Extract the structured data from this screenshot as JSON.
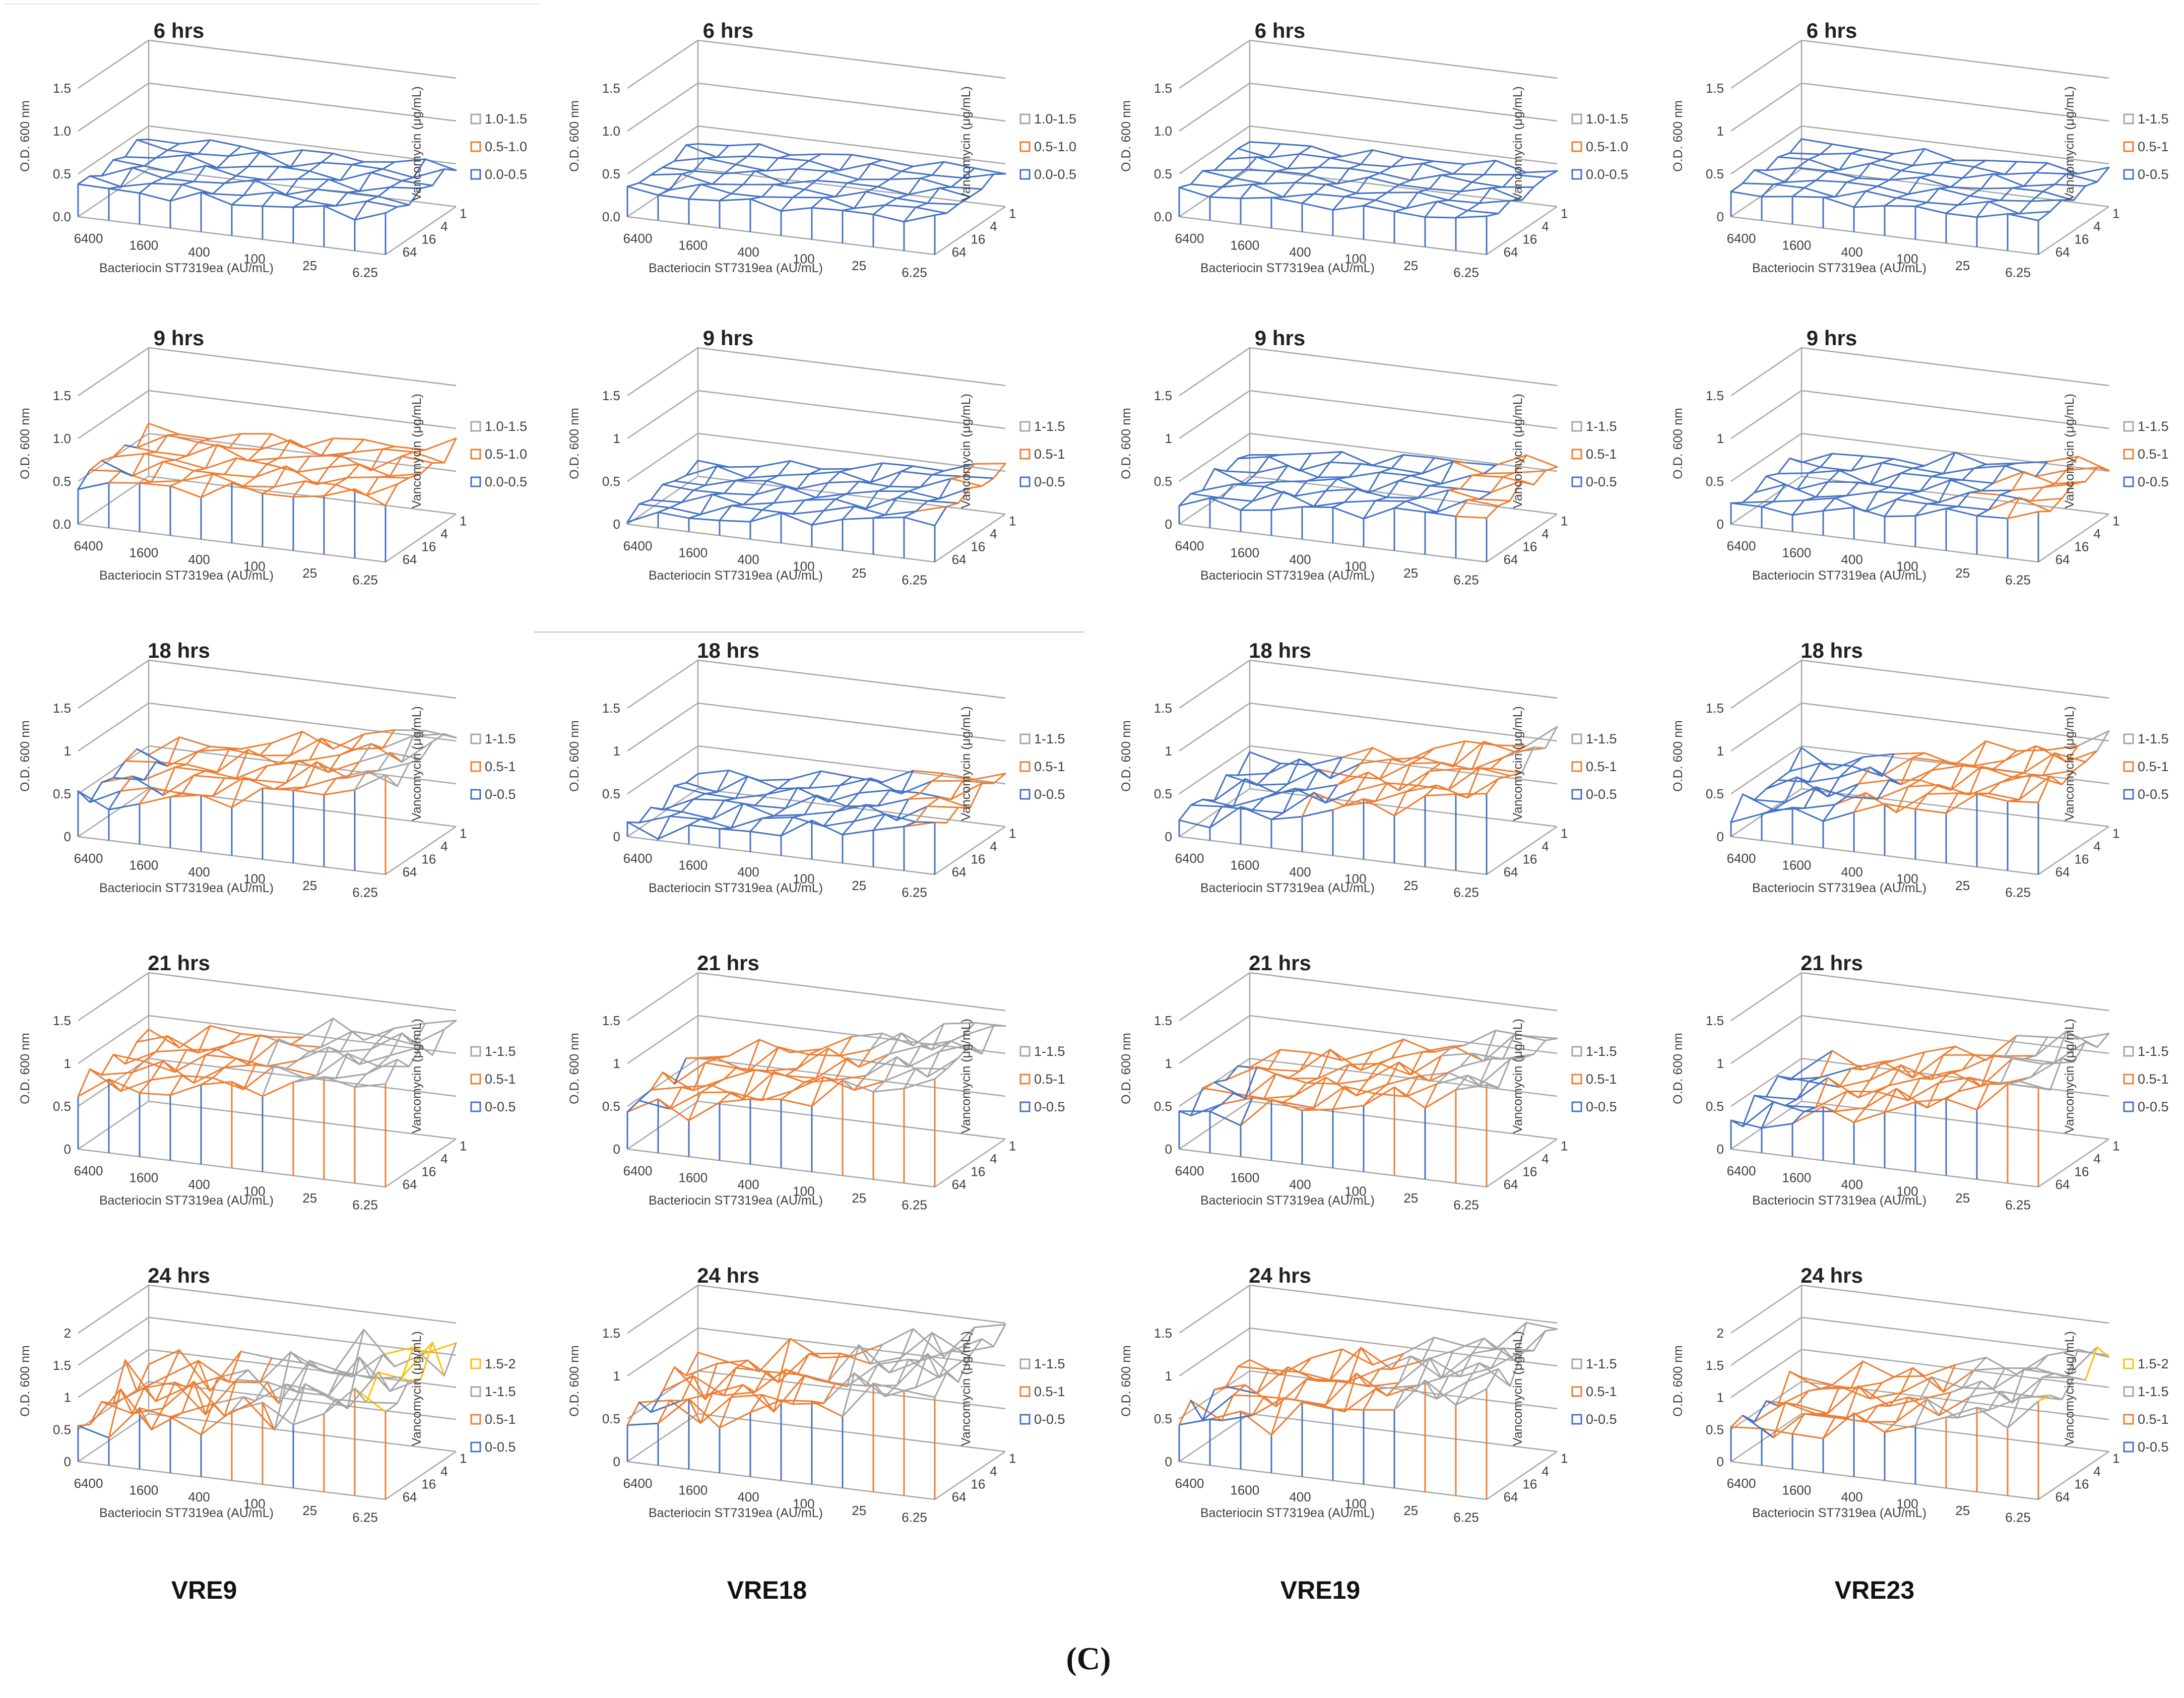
{
  "figure": {
    "panel_label": "(C)",
    "columns": [
      "VRE9",
      "VRE18",
      "VRE19",
      "VRE23"
    ],
    "rows": [
      "6 hrs",
      "9 hrs",
      "18 hrs",
      "21 hrs",
      "24 hrs"
    ],
    "x_label": "Bacteriocin ST7319ea  (AU/mL)",
    "y_label": "O.D. 600 nm",
    "z_label": "Vancomycin (μg/mL)",
    "x_ticks": [
      "6400",
      "1600",
      "400",
      "100",
      "25",
      "6.25"
    ],
    "z_ticks": [
      "1",
      "4",
      "16",
      "64"
    ],
    "colors": {
      "0-0.5": "#4472c4",
      "0.5-1": "#ed7d31",
      "1-1.5": "#a5a5a5",
      "1.5-2": "#ffc000",
      "axis": "#a6a6a6"
    }
  },
  "chart_data": [
    {
      "type": "surface",
      "strain": "VRE9",
      "title": "6 hrs",
      "yticks": [
        "0.0",
        "0.5",
        "1.0",
        "1.5"
      ],
      "ylim": [
        0,
        1.5
      ],
      "legend": [
        "1.0-1.5",
        "0.5-1.0",
        "0.0-0.5"
      ],
      "base": 0.35,
      "rise": 0.1,
      "noise": 0.05
    },
    {
      "type": "surface",
      "strain": "VRE18",
      "title": "6 hrs",
      "yticks": [
        "0.0",
        "0.5",
        "1.0",
        "1.5"
      ],
      "ylim": [
        0,
        1.5
      ],
      "legend": [
        "1.0-1.5",
        "0.5-1.0",
        "0.0-0.5"
      ],
      "base": 0.3,
      "rise": 0.1,
      "noise": 0.04
    },
    {
      "type": "surface",
      "strain": "VRE19",
      "title": "6 hrs",
      "yticks": [
        "0.0",
        "0.5",
        "1.0",
        "1.5"
      ],
      "ylim": [
        0,
        1.5
      ],
      "legend": [
        "1.0-1.5",
        "0.5-1.0",
        "0.0-0.5"
      ],
      "base": 0.3,
      "rise": 0.1,
      "noise": 0.04
    },
    {
      "type": "surface",
      "strain": "VRE23",
      "title": "6 hrs",
      "yticks": [
        "0",
        "0.5",
        "1",
        "1.5"
      ],
      "ylim": [
        0,
        1.5
      ],
      "legend": [
        "1-1.5",
        "0.5-1",
        "0-0.5"
      ],
      "base": 0.3,
      "rise": 0.1,
      "noise": 0.04
    },
    {
      "type": "surface",
      "strain": "VRE9",
      "title": "9 hrs",
      "yticks": [
        "0.0",
        "0.5",
        "1.0",
        "1.5"
      ],
      "ylim": [
        0,
        1.5
      ],
      "legend": [
        "1.0-1.5",
        "0.5-1.0",
        "0.0-0.5"
      ],
      "base": 0.5,
      "rise": 0.25,
      "noise": 0.07
    },
    {
      "type": "surface",
      "strain": "VRE18",
      "title": "9 hrs",
      "yticks": [
        "0",
        "0.5",
        "1",
        "1.5"
      ],
      "ylim": [
        0,
        1.5
      ],
      "legend": [
        "1-1.5",
        "0.5-1",
        "0-0.5"
      ],
      "base": 0.1,
      "rise": 0.4,
      "noise": 0.05
    },
    {
      "type": "surface",
      "strain": "VRE19",
      "title": "9 hrs",
      "yticks": [
        "0",
        "0.5",
        "1",
        "1.5"
      ],
      "ylim": [
        0,
        1.5
      ],
      "legend": [
        "1-1.5",
        "0.5-1",
        "0-0.5"
      ],
      "base": 0.25,
      "rise": 0.3,
      "noise": 0.06
    },
    {
      "type": "surface",
      "strain": "VRE23",
      "title": "9 hrs",
      "yticks": [
        "0",
        "0.5",
        "1",
        "1.5"
      ],
      "ylim": [
        0,
        1.5
      ],
      "legend": [
        "1-1.5",
        "0.5-1",
        "0-0.5"
      ],
      "base": 0.2,
      "rise": 0.35,
      "noise": 0.06
    },
    {
      "type": "surface",
      "strain": "VRE9",
      "title": "18 hrs",
      "yticks": [
        "0",
        "0.5",
        "1",
        "1.5"
      ],
      "ylim": [
        0,
        1.5
      ],
      "legend": [
        "1-1.5",
        "0.5-1",
        "0-0.5"
      ],
      "base": 0.4,
      "rise": 0.65,
      "noise": 0.09
    },
    {
      "type": "surface",
      "strain": "VRE18",
      "title": "18 hrs",
      "yticks": [
        "0",
        "0.5",
        "1",
        "1.5"
      ],
      "ylim": [
        0,
        1.5
      ],
      "legend": [
        "1-1.5",
        "0.5-1",
        "0-0.5"
      ],
      "base": 0.1,
      "rise": 0.45,
      "noise": 0.07
    },
    {
      "type": "surface",
      "strain": "VRE19",
      "title": "18 hrs",
      "yticks": [
        "0",
        "0.5",
        "1",
        "1.5"
      ],
      "ylim": [
        0,
        1.5
      ],
      "legend": [
        "1-1.5",
        "0.5-1",
        "0-0.5"
      ],
      "base": 0.2,
      "rise": 0.75,
      "noise": 0.09
    },
    {
      "type": "surface",
      "strain": "VRE23",
      "title": "18 hrs",
      "yticks": [
        "0",
        "0.5",
        "1",
        "1.5"
      ],
      "ylim": [
        0,
        1.5
      ],
      "legend": [
        "1-1.5",
        "0.5-1",
        "0-0.5"
      ],
      "base": 0.25,
      "rise": 0.65,
      "noise": 0.09
    },
    {
      "type": "surface",
      "strain": "VRE9",
      "title": "21 hrs",
      "yticks": [
        "0",
        "0.5",
        "1",
        "1.5"
      ],
      "ylim": [
        0,
        1.5
      ],
      "legend": [
        "1-1.5",
        "0.5-1",
        "0-0.5"
      ],
      "base": 0.7,
      "rise": 0.55,
      "noise": 0.1
    },
    {
      "type": "surface",
      "strain": "VRE18",
      "title": "21 hrs",
      "yticks": [
        "0",
        "0.5",
        "1",
        "1.5"
      ],
      "ylim": [
        0,
        1.5
      ],
      "legend": [
        "1-1.5",
        "0.5-1",
        "0-0.5"
      ],
      "base": 0.45,
      "rise": 0.8,
      "noise": 0.1
    },
    {
      "type": "surface",
      "strain": "VRE19",
      "title": "21 hrs",
      "yticks": [
        "0",
        "0.5",
        "1",
        "1.5"
      ],
      "ylim": [
        0,
        1.5
      ],
      "legend": [
        "1-1.5",
        "0.5-1",
        "0-0.5"
      ],
      "base": 0.4,
      "rise": 0.75,
      "noise": 0.1
    },
    {
      "type": "surface",
      "strain": "VRE23",
      "title": "21 hrs",
      "yticks": [
        "0",
        "0.5",
        "1",
        "1.5"
      ],
      "ylim": [
        0,
        1.5
      ],
      "legend": [
        "1-1.5",
        "0.5-1",
        "0-0.5"
      ],
      "base": 0.3,
      "rise": 0.85,
      "noise": 0.1
    },
    {
      "type": "surface",
      "strain": "VRE9",
      "title": "24 hrs",
      "yticks": [
        "0",
        "0.5",
        "1",
        "1.5",
        "2"
      ],
      "ylim": [
        0,
        2
      ],
      "legend": [
        "1.5-2",
        "1-1.5",
        "0.5-1",
        "0-0.5"
      ],
      "base": 0.6,
      "rise": 0.9,
      "noise": 0.25
    },
    {
      "type": "surface",
      "strain": "VRE18",
      "title": "24 hrs",
      "yticks": [
        "0",
        "0.5",
        "1",
        "1.5"
      ],
      "ylim": [
        0,
        1.5
      ],
      "legend": [
        "1-1.5",
        "0.5-1",
        "0-0.5"
      ],
      "base": 0.5,
      "rise": 0.8,
      "noise": 0.15
    },
    {
      "type": "surface",
      "strain": "VRE19",
      "title": "24 hrs",
      "yticks": [
        "0",
        "0.5",
        "1",
        "1.5"
      ],
      "ylim": [
        0,
        1.5
      ],
      "legend": [
        "1-1.5",
        "0.5-1",
        "0-0.5"
      ],
      "base": 0.45,
      "rise": 0.85,
      "noise": 0.13
    },
    {
      "type": "surface",
      "strain": "VRE23",
      "title": "24 hrs",
      "yticks": [
        "0",
        "0.5",
        "1",
        "1.5",
        "2"
      ],
      "ylim": [
        0,
        2
      ],
      "legend": [
        "1.5-2",
        "1-1.5",
        "0.5-1",
        "0-0.5"
      ],
      "base": 0.45,
      "rise": 0.95,
      "noise": 0.15
    }
  ]
}
